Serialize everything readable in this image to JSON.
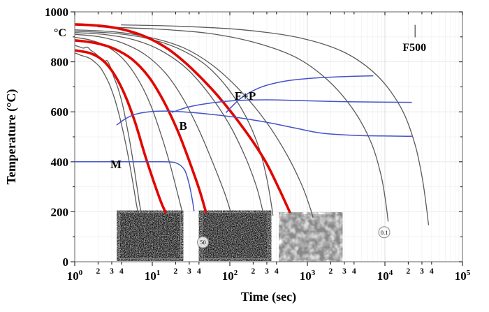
{
  "page": {
    "background": "#ffffff"
  },
  "colors": {
    "cooling": "#5b5b5b",
    "highlight": "#e10600",
    "transformation": "#4553c9",
    "grid_minor": "#f0f0f0",
    "grid_major": "#e3e3e3",
    "grid_decade": "#d9d9d9",
    "frame": "#7d7d7d",
    "text": "#000000"
  },
  "axes": {
    "x": {
      "label": "Time (sec)",
      "scale": "log",
      "base": "10",
      "min_exp": 0,
      "max_exp": 5,
      "minor_tick_labels": [
        "2",
        "3",
        "4"
      ]
    },
    "y": {
      "label": "Temperature (°C)",
      "unit": "°C",
      "min": 0,
      "max": 1000,
      "ticks": [
        1000,
        800,
        600,
        400,
        200,
        0
      ]
    }
  },
  "chart_data": {
    "type": "line",
    "title": "",
    "xlabel": "Time (sec)",
    "ylabel": "Temperature (°C)",
    "xscale": "log",
    "xlim": [
      1,
      100000
    ],
    "ylim": [
      0,
      1000
    ],
    "grid": true,
    "legend": false,
    "series": [
      {
        "name": "cooling-curve-1",
        "role": "cooling",
        "points": [
          [
            1,
            866
          ],
          [
            1.15,
            860
          ],
          [
            1.3,
            855
          ],
          [
            1.45,
            859
          ],
          [
            1.6,
            847
          ],
          [
            1.8,
            836
          ],
          [
            2.1,
            818
          ],
          [
            2.4,
            800
          ],
          [
            2.6,
            805
          ],
          [
            2.9,
            778
          ],
          [
            3.2,
            738
          ],
          [
            3.6,
            696
          ],
          [
            4.1,
            634
          ],
          [
            4.6,
            558
          ],
          [
            5.2,
            470
          ],
          [
            5.8,
            380
          ],
          [
            6.4,
            292
          ],
          [
            6.9,
            225
          ],
          [
            7.4,
            182
          ]
        ]
      },
      {
        "name": "cooling-curve-2",
        "role": "cooling",
        "points": [
          [
            1,
            836
          ],
          [
            1.2,
            826
          ],
          [
            1.4,
            820
          ],
          [
            1.6,
            812
          ],
          [
            1.8,
            800
          ],
          [
            2.1,
            780
          ],
          [
            2.4,
            752
          ],
          [
            2.8,
            710
          ],
          [
            3.3,
            648
          ],
          [
            3.9,
            565
          ],
          [
            4.5,
            478
          ],
          [
            5.1,
            392
          ],
          [
            5.7,
            305
          ],
          [
            6.2,
            235
          ],
          [
            6.6,
            192
          ]
        ]
      },
      {
        "name": "cooling-curve-3",
        "role": "cooling",
        "points": [
          [
            1,
            898
          ],
          [
            1.6,
            887
          ],
          [
            2.6,
            862
          ],
          [
            4.2,
            812
          ],
          [
            6.5,
            732
          ],
          [
            9.5,
            628
          ],
          [
            13,
            508
          ],
          [
            17,
            388
          ],
          [
            21,
            278
          ],
          [
            24.5,
            196
          ]
        ]
      },
      {
        "name": "cooling-curve-4",
        "role": "cooling",
        "points": [
          [
            1,
            910
          ],
          [
            2,
            901
          ],
          [
            4,
            877
          ],
          [
            8,
            830
          ],
          [
            15,
            753
          ],
          [
            25,
            652
          ],
          [
            40,
            527
          ],
          [
            60,
            398
          ],
          [
            85,
            278
          ],
          [
            103,
            198
          ]
        ]
      },
      {
        "name": "cooling-curve-5",
        "role": "cooling",
        "points": [
          [
            1,
            917
          ],
          [
            2.5,
            909
          ],
          [
            6,
            887
          ],
          [
            13,
            845
          ],
          [
            28,
            772
          ],
          [
            55,
            668
          ],
          [
            100,
            546
          ],
          [
            160,
            416
          ],
          [
            220,
            302
          ],
          [
            262,
            212
          ],
          [
            285,
            170
          ]
        ]
      },
      {
        "name": "cooling-curve-6",
        "role": "cooling",
        "points": [
          [
            1,
            922
          ],
          [
            3,
            915
          ],
          [
            8,
            896
          ],
          [
            20,
            858
          ],
          [
            45,
            796
          ],
          [
            90,
            702
          ],
          [
            160,
            582
          ],
          [
            240,
            452
          ],
          [
            300,
            332
          ],
          [
            338,
            242
          ],
          [
            360,
            186
          ]
        ]
      },
      {
        "name": "cooling-curve-7",
        "role": "cooling",
        "points": [
          [
            1,
            928
          ],
          [
            3,
            921
          ],
          [
            9,
            899
          ],
          [
            25,
            857
          ],
          [
            60,
            786
          ],
          [
            140,
            681
          ],
          [
            300,
            556
          ],
          [
            550,
            426
          ],
          [
            850,
            306
          ],
          [
            1080,
            218
          ],
          [
            1180,
            178
          ]
        ]
      },
      {
        "name": "cooling-curve-8",
        "role": "cooling",
        "points": [
          [
            2,
            940
          ],
          [
            10,
            932
          ],
          [
            50,
            915
          ],
          [
            200,
            879
          ],
          [
            700,
            819
          ],
          [
            1800,
            729
          ],
          [
            3800,
            614
          ],
          [
            6500,
            484
          ],
          [
            8800,
            354
          ],
          [
            10200,
            242
          ],
          [
            11000,
            162
          ]
        ]
      },
      {
        "name": "cooling-curve-9",
        "role": "cooling",
        "points": [
          [
            4,
            948
          ],
          [
            25,
            942
          ],
          [
            150,
            928
          ],
          [
            800,
            896
          ],
          [
            3000,
            838
          ],
          [
            8000,
            744
          ],
          [
            16000,
            618
          ],
          [
            24000,
            478
          ],
          [
            30000,
            342
          ],
          [
            34000,
            228
          ],
          [
            36500,
            148
          ]
        ]
      },
      {
        "name": "highlight-cooling-curve-1",
        "role": "highlight",
        "points": [
          [
            1,
            846
          ],
          [
            1.6,
            834
          ],
          [
            2.3,
            806
          ],
          [
            3.2,
            752
          ],
          [
            4.4,
            670
          ],
          [
            6,
            558
          ],
          [
            8,
            430
          ],
          [
            10.5,
            318
          ],
          [
            13,
            238
          ],
          [
            14.8,
            198
          ]
        ]
      },
      {
        "name": "highlight-cooling-curve-2",
        "role": "highlight",
        "points": [
          [
            1,
            886
          ],
          [
            1.8,
            876
          ],
          [
            3.2,
            853
          ],
          [
            5.5,
            810
          ],
          [
            9,
            740
          ],
          [
            14,
            643
          ],
          [
            21,
            528
          ],
          [
            30,
            403
          ],
          [
            40,
            293
          ],
          [
            49,
            200
          ]
        ]
      },
      {
        "name": "highlight-cooling-curve-3",
        "role": "highlight",
        "points": [
          [
            1,
            950
          ],
          [
            2,
            945
          ],
          [
            4,
            931
          ],
          [
            8,
            902
          ],
          [
            16,
            851
          ],
          [
            32,
            774
          ],
          [
            70,
            664
          ],
          [
            150,
            534
          ],
          [
            280,
            408
          ],
          [
            430,
            293
          ],
          [
            590,
            200
          ]
        ]
      },
      {
        "name": "martensite-start-line",
        "role": "transformation",
        "points": [
          [
            1,
            400
          ],
          [
            8,
            400
          ],
          [
            14,
            400
          ],
          [
            20,
            396
          ],
          [
            26,
            368
          ],
          [
            30,
            308
          ],
          [
            33,
            243
          ],
          [
            34.5,
            204
          ]
        ]
      },
      {
        "name": "bainite-start-line",
        "role": "transformation",
        "points": [
          [
            3.5,
            548
          ],
          [
            4.5,
            572
          ],
          [
            6,
            590
          ],
          [
            9,
            600
          ],
          [
            14,
            603
          ],
          [
            25,
            600
          ],
          [
            50,
            592
          ],
          [
            120,
            578
          ],
          [
            300,
            558
          ],
          [
            700,
            535
          ],
          [
            1500,
            515
          ],
          [
            4000,
            506
          ],
          [
            12000,
            503
          ],
          [
            22000,
            502
          ]
        ]
      },
      {
        "name": "ferrite-pearlite-lower-line",
        "role": "transformation",
        "points": [
          [
            18,
            598
          ],
          [
            30,
            620
          ],
          [
            60,
            636
          ],
          [
            120,
            645
          ],
          [
            300,
            648
          ],
          [
            800,
            645
          ],
          [
            2500,
            641
          ],
          [
            8000,
            639
          ],
          [
            22000,
            638
          ]
        ]
      },
      {
        "name": "ferrite-pearlite-upper-line",
        "role": "transformation",
        "points": [
          [
            90,
            598
          ],
          [
            140,
            655
          ],
          [
            250,
            698
          ],
          [
            500,
            722
          ],
          [
            1200,
            735
          ],
          [
            3000,
            741
          ],
          [
            7000,
            744
          ]
        ]
      }
    ],
    "annotations": [
      {
        "name": "label-martensite",
        "text": "M",
        "t": 3.4,
        "T": 388,
        "size": 17
      },
      {
        "name": "label-bainite",
        "text": "B",
        "t": 25,
        "T": 542,
        "size": 17
      },
      {
        "name": "label-ferrite-pearlite",
        "text": "F+P",
        "t": 158,
        "T": 662,
        "size": 17
      },
      {
        "name": "label-f500",
        "text": "F500",
        "t": 24000,
        "T": 858,
        "size": 16
      },
      {
        "name": "rate-label-50",
        "text": "50",
        "t": 45,
        "T": 78,
        "circled": true
      },
      {
        "name": "rate-label-0-1",
        "text": "0.1",
        "t": 9800,
        "T": 118,
        "circled": true
      }
    ],
    "f500_marker": {
      "t": 24500,
      "T_from": 898,
      "T_to": 948
    },
    "insets": [
      {
        "name": "micrograph-martensite",
        "t_range": [
          3.8,
          23
        ],
        "T_range": [
          12,
          196
        ],
        "style": "fine"
      },
      {
        "name": "micrograph-bainite",
        "t_range": [
          44,
          310
        ],
        "T_range": [
          12,
          196
        ],
        "style": "fine"
      },
      {
        "name": "micrograph-ferrite-pearlite",
        "t_range": [
          470,
          2600
        ],
        "T_range": [
          8,
          188
        ],
        "style": "coarse"
      }
    ]
  }
}
